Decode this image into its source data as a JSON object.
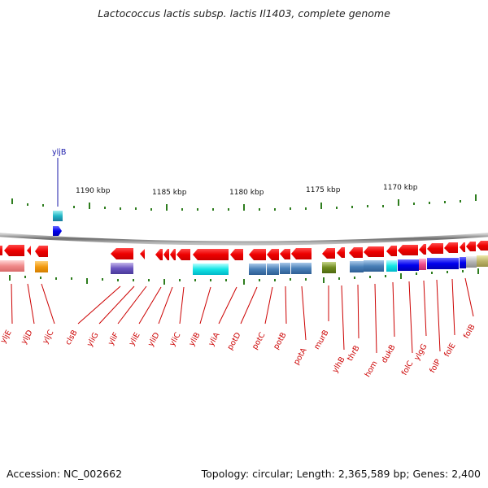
{
  "title": "Lactococcus lactis subsp. lactis Il1403, complete genome",
  "footer": {
    "accession": "Accession: NC_002662",
    "summary": "Topology: circular; Length: 2,365,589 bp; Genes: 2,400"
  },
  "ruler_labels": [
    "1190 kbp",
    "1185 kbp",
    "1180 kbp",
    "1175 kbp",
    "1170 kbp"
  ],
  "top_gene_label": "yljB",
  "gene_labels": [
    "yljE",
    "yljD",
    "yljC",
    "clsB",
    "yliG",
    "yliF",
    "yliE",
    "yliD",
    "yliC",
    "yliB",
    "yliA",
    "potD",
    "potC",
    "potB",
    "potA",
    "murB",
    "ylhB",
    "thrB",
    "hom",
    "dukB",
    "folC",
    "ylgG",
    "folP",
    "folE",
    "folB"
  ],
  "colors": {
    "gene_arrow": "#ff0000",
    "backbone": "#888888",
    "tick": "#2e7d1e",
    "label": "#cc0000"
  }
}
